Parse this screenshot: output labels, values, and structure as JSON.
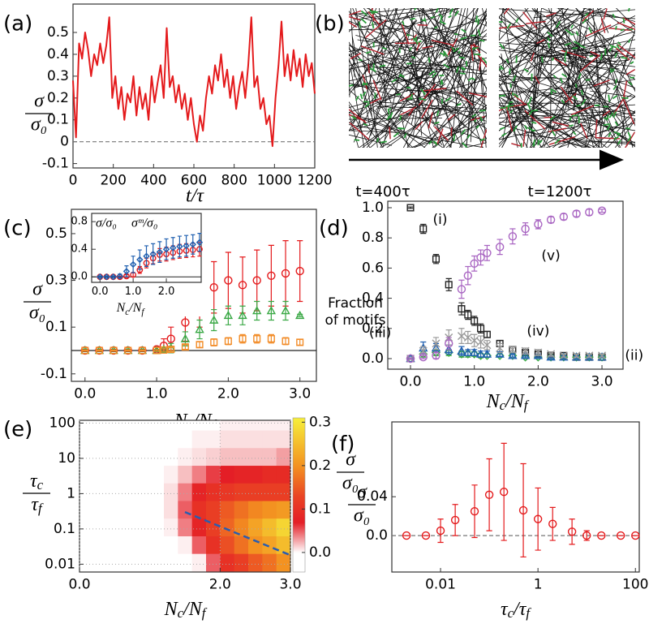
{
  "chart_data": [
    {
      "type": "line",
      "title": "(a)",
      "ylabel": {
        "numerator": "σ",
        "denominator": "σ₀"
      },
      "xlabel": "t/τ",
      "x": [
        0,
        15,
        30,
        45,
        60,
        75,
        90,
        105,
        120,
        135,
        150,
        165,
        180,
        195,
        210,
        225,
        240,
        255,
        270,
        285,
        300,
        315,
        330,
        345,
        360,
        375,
        390,
        405,
        420,
        435,
        450,
        465,
        480,
        495,
        510,
        525,
        540,
        555,
        570,
        585,
        600,
        615,
        630,
        645,
        660,
        675,
        690,
        705,
        720,
        735,
        750,
        765,
        780,
        795,
        810,
        825,
        840,
        855,
        870,
        885,
        900,
        915,
        930,
        945,
        960,
        975,
        990,
        1005,
        1020,
        1035,
        1050,
        1065,
        1080,
        1095,
        1110,
        1125,
        1140,
        1155,
        1170,
        1185,
        1200
      ],
      "values": [
        0.28,
        0.02,
        0.45,
        0.38,
        0.5,
        0.42,
        0.3,
        0.4,
        0.35,
        0.45,
        0.36,
        0.44,
        0.57,
        0.2,
        0.3,
        0.15,
        0.25,
        0.1,
        0.22,
        0.18,
        0.3,
        0.12,
        0.25,
        0.15,
        0.22,
        0.1,
        0.3,
        0.18,
        0.27,
        0.35,
        0.2,
        0.52,
        0.25,
        0.3,
        0.18,
        0.26,
        0.15,
        0.22,
        0.1,
        0.2,
        0.08,
        0.0,
        0.12,
        0.05,
        0.2,
        0.3,
        0.22,
        0.35,
        0.28,
        0.4,
        0.25,
        0.33,
        0.2,
        0.3,
        0.15,
        0.25,
        0.32,
        0.2,
        0.35,
        0.57,
        0.25,
        0.3,
        0.15,
        0.2,
        0.08,
        0.12,
        -0.02,
        0.2,
        0.35,
        0.55,
        0.3,
        0.4,
        0.28,
        0.42,
        0.3,
        0.38,
        0.25,
        0.4,
        0.3,
        0.36,
        0.22
      ],
      "color": "#e41a1c",
      "xlim": [
        0,
        1200
      ],
      "ylim": [
        -0.12,
        0.63
      ],
      "xticks": [
        0,
        200,
        400,
        600,
        800,
        1000,
        1200
      ],
      "yticks": [
        -0.1,
        0,
        0.1,
        0.2,
        0.3,
        0.4,
        0.5
      ],
      "reference_line": 0,
      "reference_style": "dashed"
    },
    {
      "type": "image",
      "title": "(b)",
      "labels": [
        "t=400τ",
        "t=1200τ"
      ]
    },
    {
      "type": "errorbar",
      "title": "(c)",
      "ylabel": {
        "numerator": "σ",
        "denominator": "σ₀"
      },
      "xlabel": "Nc/Nf",
      "x": [
        0,
        0.2,
        0.4,
        0.6,
        0.8,
        1.0,
        1.1,
        1.2,
        1.4,
        1.6,
        1.8,
        2.0,
        2.2,
        2.4,
        2.6,
        2.8,
        3.0
      ],
      "series": [
        {
          "color": "#e41a1c",
          "marker": "circle",
          "values": [
            0,
            0,
            0,
            0,
            0,
            0.005,
            0.02,
            0.05,
            0.12,
            0.2,
            0.27,
            0.3,
            0.28,
            0.3,
            0.32,
            0.33,
            0.34
          ],
          "errors": [
            0.005,
            0.005,
            0.005,
            0.005,
            0.005,
            0.01,
            0.03,
            0.05,
            0.08,
            0.1,
            0.11,
            0.12,
            0.12,
            0.13,
            0.13,
            0.14,
            0.13
          ]
        },
        {
          "color": "#3aa845",
          "marker": "triangle",
          "values": [
            0,
            0,
            0,
            0,
            0,
            0,
            0.005,
            0.01,
            0.05,
            0.09,
            0.13,
            0.15,
            0.15,
            0.17,
            0.17,
            0.17,
            0.15
          ],
          "errors": [
            0.003,
            0.003,
            0.003,
            0.003,
            0.003,
            0.005,
            0.01,
            0.02,
            0.03,
            0.04,
            0.045,
            0.04,
            0.04,
            0.04,
            0.04,
            0.04,
            0.005
          ]
        },
        {
          "color": "#f28c28",
          "marker": "square",
          "values": [
            0,
            0,
            0,
            0,
            0,
            0,
            0.002,
            0.005,
            0.015,
            0.025,
            0.035,
            0.04,
            0.05,
            0.05,
            0.05,
            0.04,
            0.035
          ],
          "errors": [
            0.002,
            0.002,
            0.002,
            0.002,
            0.002,
            0.003,
            0.005,
            0.008,
            0.01,
            0.012,
            0.015,
            0.015,
            0.018,
            0.018,
            0.018,
            0.015,
            0.012
          ]
        }
      ],
      "xlim": [
        -0.19,
        3.23
      ],
      "ylim": [
        -0.132,
        0.604
      ],
      "xticks": [
        {
          "value": 0,
          "label": "0.0"
        },
        {
          "value": 1,
          "label": "1.0"
        },
        {
          "value": 2,
          "label": "2.0"
        },
        {
          "value": 3,
          "label": "3.0"
        }
      ],
      "yticks": [
        -0.1,
        0.1,
        0.3,
        0.5
      ],
      "reference_line": 0,
      "reference_style": "solid",
      "inset": {
        "xlabel": "Nc/Nf",
        "x": [
          0,
          0.2,
          0.4,
          0.6,
          0.8,
          1.0,
          1.2,
          1.4,
          1.6,
          1.8,
          2.0,
          2.2,
          2.4,
          2.6,
          2.8,
          3.0
        ],
        "series": [
          {
            "name": "σ/σ₀",
            "color": "#e41a1c",
            "marker": "circle",
            "values": [
              0,
              0,
              0,
              0,
              0.01,
              0.03,
              0.1,
              0.2,
              0.27,
              0.32,
              0.33,
              0.35,
              0.37,
              0.38,
              0.39,
              0.4
            ],
            "errors": [
              0.01,
              0.01,
              0.01,
              0.01,
              0.02,
              0.03,
              0.05,
              0.07,
              0.08,
              0.09,
              0.1,
              0.1,
              0.1,
              0.1,
              0.1,
              0.1
            ]
          },
          {
            "name": "σᵐ/σ₀",
            "color": "#2060b0",
            "marker": "diamond",
            "values": [
              0,
              0,
              0,
              0.01,
              0.08,
              0.18,
              0.25,
              0.3,
              0.33,
              0.36,
              0.4,
              0.42,
              0.44,
              0.45,
              0.47,
              0.5
            ],
            "errors": [
              0.01,
              0.01,
              0.01,
              0.03,
              0.08,
              0.12,
              0.14,
              0.15,
              0.15,
              0.15,
              0.15,
              0.15,
              0.15,
              0.15,
              0.14,
              0.13
            ]
          }
        ],
        "xlim": [
          -0.25,
          3.05
        ],
        "ylim": [
          -0.08,
          0.92
        ],
        "xticks": [
          {
            "value": 0,
            "label": "0.0"
          },
          {
            "value": 1,
            "label": "1.0"
          },
          {
            "value": 2,
            "label": "2.0"
          }
        ],
        "yticks": [
          {
            "value": 0,
            "label": "0.0"
          },
          0.4,
          0.8
        ]
      }
    },
    {
      "type": "errorbar",
      "title": "(d)",
      "ylabel": [
        "Fraction",
        "of motifs"
      ],
      "xlabel": "Nc/Nf",
      "x": [
        0,
        0.2,
        0.4,
        0.6,
        0.8,
        0.9,
        1.0,
        1.1,
        1.2,
        1.4,
        1.6,
        1.8,
        2.0,
        2.2,
        2.4,
        2.6,
        2.8,
        3.0
      ],
      "series": [
        {
          "name": "(i)",
          "color": "#222222",
          "marker": "square",
          "values": [
            1.0,
            0.86,
            0.66,
            0.49,
            0.33,
            0.29,
            0.25,
            0.2,
            0.16,
            0.1,
            0.06,
            0.04,
            0.03,
            0.02,
            0.02,
            0.01,
            0.01,
            0.01
          ],
          "errors": [
            0.005,
            0.03,
            0.03,
            0.04,
            0.04,
            0.03,
            0.03,
            0.03,
            0.02,
            0.02,
            0.02,
            0.015,
            0.015,
            0.01,
            0.01,
            0.01,
            0.01,
            0.005
          ]
        },
        {
          "name": "(ii)",
          "color": "#3aa845",
          "marker": "diamond",
          "values": [
            0,
            0.03,
            0.04,
            0.04,
            0.03,
            0.03,
            0.03,
            0.02,
            0.02,
            0.02,
            0.02,
            0.01,
            0.01,
            0.01,
            0.01,
            0.01,
            0.01,
            0.01
          ],
          "errors": [
            0.005,
            0.02,
            0.02,
            0.02,
            0.02,
            0.02,
            0.015,
            0.015,
            0.01,
            0.01,
            0.01,
            0.01,
            0.01,
            0.01,
            0.01,
            0.01,
            0.01,
            0.005
          ]
        },
        {
          "name": "(iii)",
          "color": "#2060b0",
          "marker": "triangle",
          "values": [
            0,
            0.07,
            0.07,
            0.06,
            0.05,
            0.04,
            0.04,
            0.03,
            0.03,
            0.03,
            0.02,
            0.02,
            0.02,
            0.01,
            0.01,
            0.01,
            0.01,
            0.01
          ],
          "errors": [
            0.005,
            0.04,
            0.03,
            0.03,
            0.03,
            0.02,
            0.02,
            0.02,
            0.02,
            0.015,
            0.01,
            0.01,
            0.01,
            0.01,
            0.01,
            0.01,
            0.01,
            0.005
          ]
        },
        {
          "name": "(iv)",
          "color": "#999999",
          "marker": "x",
          "values": [
            0,
            0.05,
            0.1,
            0.14,
            0.15,
            0.14,
            0.12,
            0.11,
            0.09,
            0.07,
            0.06,
            0.05,
            0.04,
            0.03,
            0.02,
            0.02,
            0.02,
            0.02
          ],
          "errors": [
            0.005,
            0.03,
            0.04,
            0.05,
            0.05,
            0.04,
            0.04,
            0.04,
            0.03,
            0.03,
            0.02,
            0.02,
            0.02,
            0.015,
            0.01,
            0.01,
            0.01,
            0.01
          ]
        },
        {
          "name": "(v)",
          "color": "#a966c2",
          "marker": "circle",
          "values": [
            0,
            0.01,
            0.02,
            0.1,
            0.46,
            0.55,
            0.63,
            0.67,
            0.7,
            0.74,
            0.81,
            0.86,
            0.89,
            0.92,
            0.94,
            0.96,
            0.97,
            0.98
          ],
          "errors": [
            0.005,
            0.01,
            0.02,
            0.04,
            0.06,
            0.06,
            0.05,
            0.05,
            0.05,
            0.05,
            0.05,
            0.04,
            0.03,
            0.02,
            0.02,
            0.02,
            0.02,
            0.01
          ]
        }
      ],
      "xlim": [
        -0.356,
        3.33
      ],
      "ylim": [
        -0.07,
        1.043
      ],
      "xticks": [
        {
          "value": 0,
          "label": "0.0"
        },
        {
          "value": 1,
          "label": "1.0"
        },
        {
          "value": 2,
          "label": "2.0"
        },
        {
          "value": 3,
          "label": "3.0"
        }
      ],
      "yticks": [
        {
          "value": 0,
          "label": "0.0"
        },
        0.2,
        0.4,
        0.6,
        0.8,
        {
          "value": 1,
          "label": "1.0"
        }
      ]
    },
    {
      "type": "heatmap",
      "title": "(e)",
      "ylabel": {
        "numerator": "τc",
        "denominator": "τf"
      },
      "xlabel": "Nc/Nf",
      "x_edges": [
        0,
        0.2,
        0.4,
        0.6,
        0.8,
        1.0,
        1.2,
        1.4,
        1.6,
        1.8,
        2.0,
        2.2,
        2.4,
        2.6,
        2.8,
        3.0
      ],
      "y_edges": [
        0.0063,
        0.02,
        0.063,
        0.2,
        0.63,
        2,
        6.3,
        20,
        63,
        120
      ],
      "z": [
        [
          0,
          0,
          0,
          0,
          0,
          0,
          0,
          0,
          0.005,
          0.05,
          0.1,
          0.12,
          0.15,
          0.17,
          0.2
        ],
        [
          0,
          0,
          0,
          0,
          0,
          0,
          0,
          0.005,
          0.05,
          0.1,
          0.14,
          0.17,
          0.2,
          0.22,
          0.25
        ],
        [
          0,
          0,
          0,
          0,
          0,
          0,
          0.005,
          0.04,
          0.08,
          0.12,
          0.16,
          0.19,
          0.22,
          0.25,
          0.28
        ],
        [
          0,
          0,
          0,
          0,
          0,
          0,
          0.01,
          0.05,
          0.1,
          0.12,
          0.15,
          0.17,
          0.19,
          0.2,
          0.21
        ],
        [
          0,
          0,
          0,
          0,
          0,
          0,
          0.01,
          0.04,
          0.08,
          0.1,
          0.11,
          0.12,
          0.12,
          0.12,
          0.12
        ],
        [
          0,
          0,
          0,
          0,
          0,
          0,
          0.005,
          0.02,
          0.04,
          0.06,
          0.07,
          0.08,
          0.08,
          0.09,
          0.09
        ],
        [
          0,
          0,
          0,
          0,
          0,
          0,
          0,
          0.005,
          0.01,
          0.015,
          0.02,
          0.02,
          0.02,
          0.02,
          0.03
        ],
        [
          0,
          0,
          0,
          0,
          0,
          0,
          0,
          0,
          0.005,
          0.005,
          0.01,
          0.01,
          0.01,
          0.01,
          0.01
        ],
        [
          0,
          0,
          0,
          0,
          0,
          0,
          0,
          0,
          0,
          0,
          0.005,
          0.005,
          0.005,
          0.005,
          0.005
        ]
      ],
      "xlim": [
        0,
        3
      ],
      "ylim": [
        0.006,
        120
      ],
      "log_y": true,
      "grid": true,
      "xticks": [
        {
          "value": 0,
          "label": "0.0"
        },
        {
          "value": 2,
          "label": "2.0"
        },
        {
          "value": 3,
          "label": "3.0"
        }
      ],
      "yticks": [
        0.01,
        0.1,
        1,
        10,
        100
      ],
      "colorscale": [
        [
          -0.045,
          "#ffffff"
        ],
        [
          0,
          "#ffffff"
        ],
        [
          0.07,
          "#e41e26"
        ],
        [
          0.13,
          "#ea4424"
        ],
        [
          0.2,
          "#f39221"
        ],
        [
          0.31,
          "#f6ee3a"
        ]
      ],
      "colorbar": {
        "clim": [
          -0.045,
          0.31
        ],
        "ticks": [
          {
            "value": 0,
            "label": "0.0"
          },
          0.1,
          0.2,
          0.3
        ],
        "label": {
          "numerator": "σ",
          "denominator": "σ₀"
        }
      },
      "fit_line": {
        "x": [
          1.5,
          3.0
        ],
        "y": [
          0.3,
          0.018
        ],
        "color": "#2a5db0"
      }
    },
    {
      "type": "errorbar",
      "title": "(f)",
      "ylabel": {
        "numerator": "σ",
        "denominator": "σ₀"
      },
      "xlabel": "τc/τf",
      "x": [
        0.002,
        0.005,
        0.01,
        0.02,
        0.05,
        0.1,
        0.2,
        0.5,
        1,
        2,
        5,
        10,
        20,
        50,
        100
      ],
      "series": [
        {
          "color": "#e41a1c",
          "marker": "circle",
          "values": [
            0,
            0,
            0.005,
            0.016,
            0.025,
            0.042,
            0.045,
            0.026,
            0.017,
            0.012,
            0.004,
            0,
            0,
            0,
            0
          ],
          "errors": [
            0,
            0,
            0.012,
            0.016,
            0.027,
            0.037,
            0.05,
            0.048,
            0.032,
            0.017,
            0.013,
            0.005,
            0,
            0,
            0
          ]
        }
      ],
      "xlim": [
        0.001,
        120
      ],
      "ylim": [
        -0.0375,
        0.117
      ],
      "log_x": true,
      "xticks": [
        0.01,
        1,
        100
      ],
      "yticks": [
        {
          "value": 0,
          "label": "0.0"
        },
        0.04
      ],
      "reference_line": 0,
      "reference_style": "dashed"
    }
  ]
}
